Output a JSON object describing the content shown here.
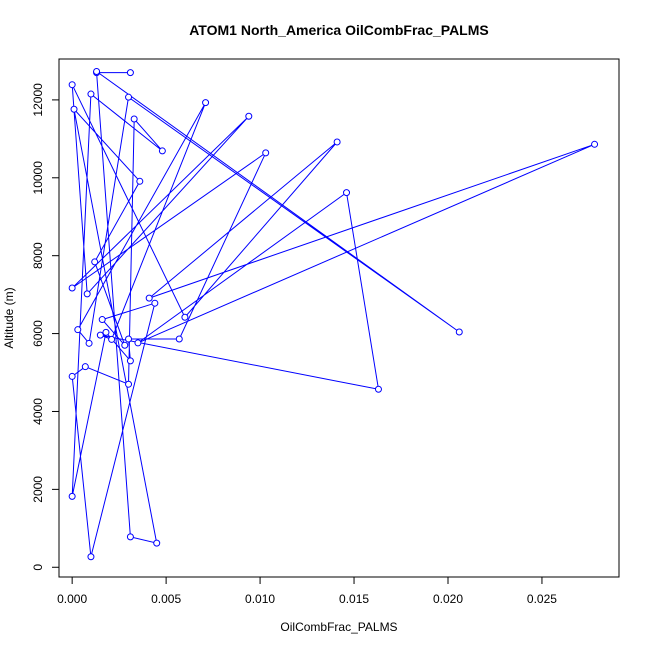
{
  "chart_data": {
    "type": "line",
    "title": "ATOM1 North_America OilCombFrac_PALMS",
    "xlabel": "OilCombFrac_PALMS",
    "ylabel": "Altitude (m)",
    "xlim": [
      -0.0007,
      0.0291
    ],
    "ylim": [
      -250,
      13050
    ],
    "x_ticks": [
      0.0,
      0.005,
      0.01,
      0.015,
      0.02,
      0.025
    ],
    "x_tick_labels": [
      "0.000",
      "0.005",
      "0.010",
      "0.015",
      "0.020",
      "0.025"
    ],
    "y_ticks": [
      0,
      2000,
      4000,
      6000,
      8000,
      10000,
      12000
    ],
    "y_tick_labels": [
      "0",
      "2000",
      "4000",
      "6000",
      "8000",
      "10000",
      "12000"
    ],
    "grid": false,
    "legend": "none",
    "markers": "open-circle",
    "color": "#0000ff",
    "series": [
      {
        "x": [
          0.0031,
          0.0013,
          0.0031,
          0.0045,
          0.0001,
          0.0036,
          0.0012,
          0.0028,
          0.0016,
          0.0044,
          0.001,
          0.0,
          0.0007,
          0.003,
          0.0033,
          0.0048,
          0.001,
          0.0,
          0.0018,
          0.0031,
          0.003,
          0.0057,
          0.0103,
          0.0,
          0.0094,
          0.0008,
          0.0,
          0.006,
          0.0141,
          0.0041,
          0.0278,
          0.0035,
          0.0146,
          0.0163,
          0.0015,
          0.0021,
          0.0071,
          0.0003,
          0.0009,
          0.003,
          0.0206,
          0.0013
        ],
        "y": [
          12700,
          12700,
          780,
          620,
          11760,
          9910,
          7840,
          5700,
          6360,
          6780,
          270,
          4900,
          5150,
          4700,
          11510,
          10690,
          12150,
          1820,
          6030,
          5300,
          5860,
          5860,
          10640,
          7170,
          11580,
          7020,
          12390,
          6420,
          10920,
          6910,
          10860,
          5760,
          9620,
          4570,
          5960,
          5850,
          11930,
          6100,
          5750,
          12070,
          6040,
          12730
        ]
      }
    ]
  }
}
